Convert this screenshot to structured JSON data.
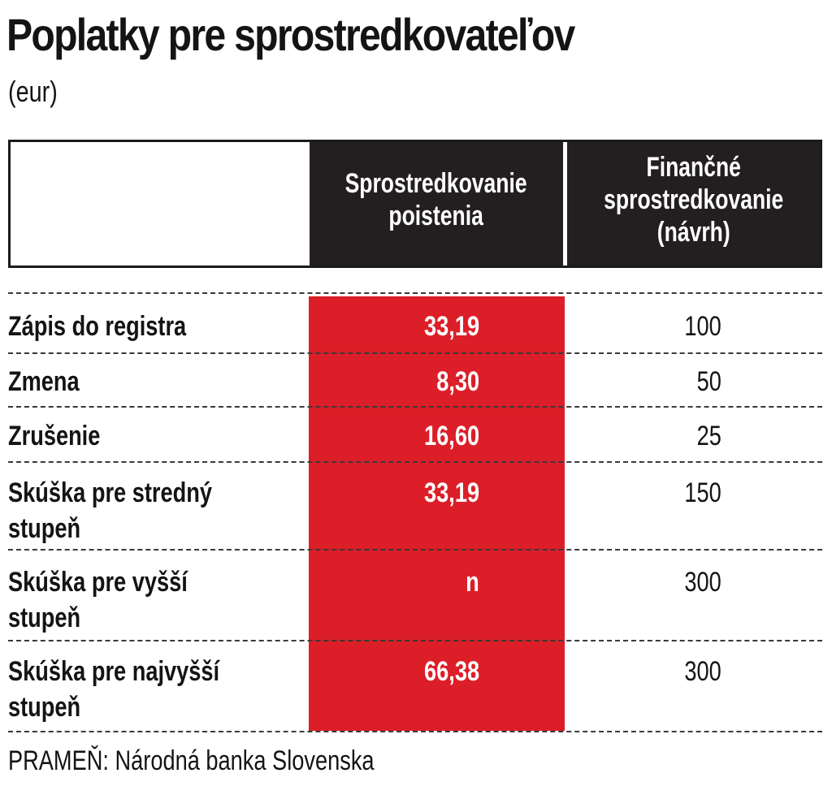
{
  "title": "Poplatky pre sprostredkovateľov",
  "unit": "(eur)",
  "source": "PRAMEŇ: Národná banka Slovenska",
  "colors": {
    "highlight": "#dc1e28",
    "header_bg": "#231f20"
  },
  "chart_data": {
    "type": "table",
    "columns": [
      "Sprostredkovanie\npoistenia",
      "Finančné\nsprostredkovanie\n(návrh)"
    ],
    "rows": [
      {
        "label": "Zápis do registra",
        "v1": "33,19",
        "v2": "100"
      },
      {
        "label": "Zmena",
        "v1": "8,30",
        "v2": "50"
      },
      {
        "label": "Zrušenie",
        "v1": "16,60",
        "v2": "25"
      },
      {
        "label": "Skúška pre stredný\nstupeň",
        "v1": "33,19",
        "v2": "150"
      },
      {
        "label": "Skúška pre vyšší\nstupeň",
        "v1": "n",
        "v2": "300"
      },
      {
        "label": "Skúška pre najvyšší\nstupeň",
        "v1": "66,38",
        "v2": "300"
      }
    ]
  }
}
